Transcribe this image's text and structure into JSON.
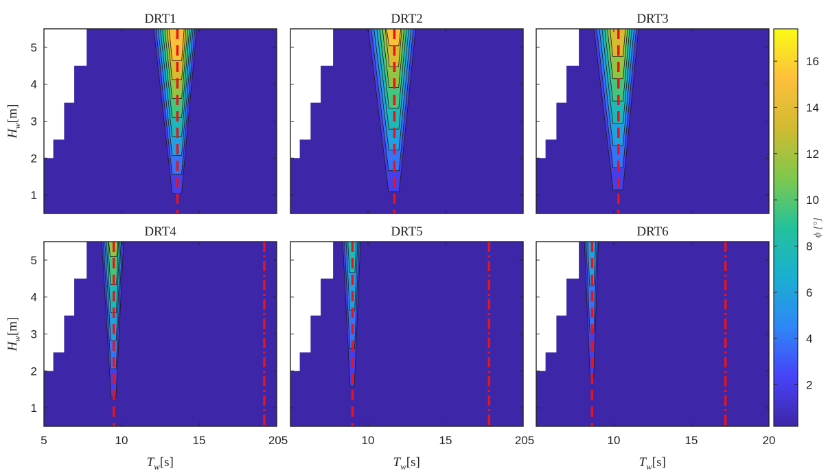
{
  "chart_data": {
    "type": "heatmap",
    "colormap": [
      "#3e26a8",
      "#4743f8",
      "#2e87f7",
      "#1bafd1",
      "#23c29b",
      "#7ec94c",
      "#d1bb31",
      "#fdbf3c",
      "#f9fb15"
    ],
    "empty_color": "#ffffff",
    "nonresponse_color": "#3e26a8",
    "resonance_line_color": "#e8141a",
    "colorbar": {
      "label": "ϕ [°]",
      "range": [
        0.2,
        17.4
      ],
      "ticks": [
        2,
        4,
        6,
        8,
        10,
        12,
        14,
        16
      ]
    },
    "x_axis": {
      "label": "Tw[s]",
      "range": [
        5,
        20
      ],
      "ticks": [
        "5",
        "10",
        "15",
        "20"
      ]
    },
    "y_axis": {
      "label": "Hw[m]",
      "range": [
        0.5,
        5.5
      ],
      "ticks": [
        "1",
        "2",
        "3",
        "4",
        "5"
      ]
    },
    "panels": [
      {
        "title": "DRT1",
        "peak_T": 13.6,
        "peak_phi": 17.0,
        "half_width": 1.15,
        "spread": 0.32,
        "dashed_T": [
          13.6
        ],
        "dashdot_T": []
      },
      {
        "title": "DRT2",
        "peak_T": 11.7,
        "peak_phi": 15.5,
        "half_width": 1.35,
        "spread": 0.3,
        "dashed_T": [
          11.7
        ],
        "dashdot_T": []
      },
      {
        "title": "DRT3",
        "peak_T": 10.3,
        "peak_phi": 14.5,
        "half_width": 1.2,
        "spread": 0.35,
        "dashed_T": [
          10.3
        ],
        "dashdot_T": []
      },
      {
        "title": "DRT4",
        "peak_T": 9.5,
        "peak_phi": 11.5,
        "half_width": 0.55,
        "spread": 0.2,
        "dashed_T": [
          9.5
        ],
        "dashdot_T": [
          19.2
        ]
      },
      {
        "title": "DRT5",
        "peak_T": 9.0,
        "peak_phi": 8.5,
        "half_width": 0.45,
        "spread": 0.18,
        "dashed_T": [
          9.0
        ],
        "dashdot_T": [
          17.8
        ]
      },
      {
        "title": "DRT6",
        "peak_T": 8.6,
        "peak_phi": 7.0,
        "half_width": 0.35,
        "spread": 0.15,
        "dashed_T": [
          8.6
        ],
        "dashdot_T": [
          17.2
        ]
      }
    ]
  }
}
